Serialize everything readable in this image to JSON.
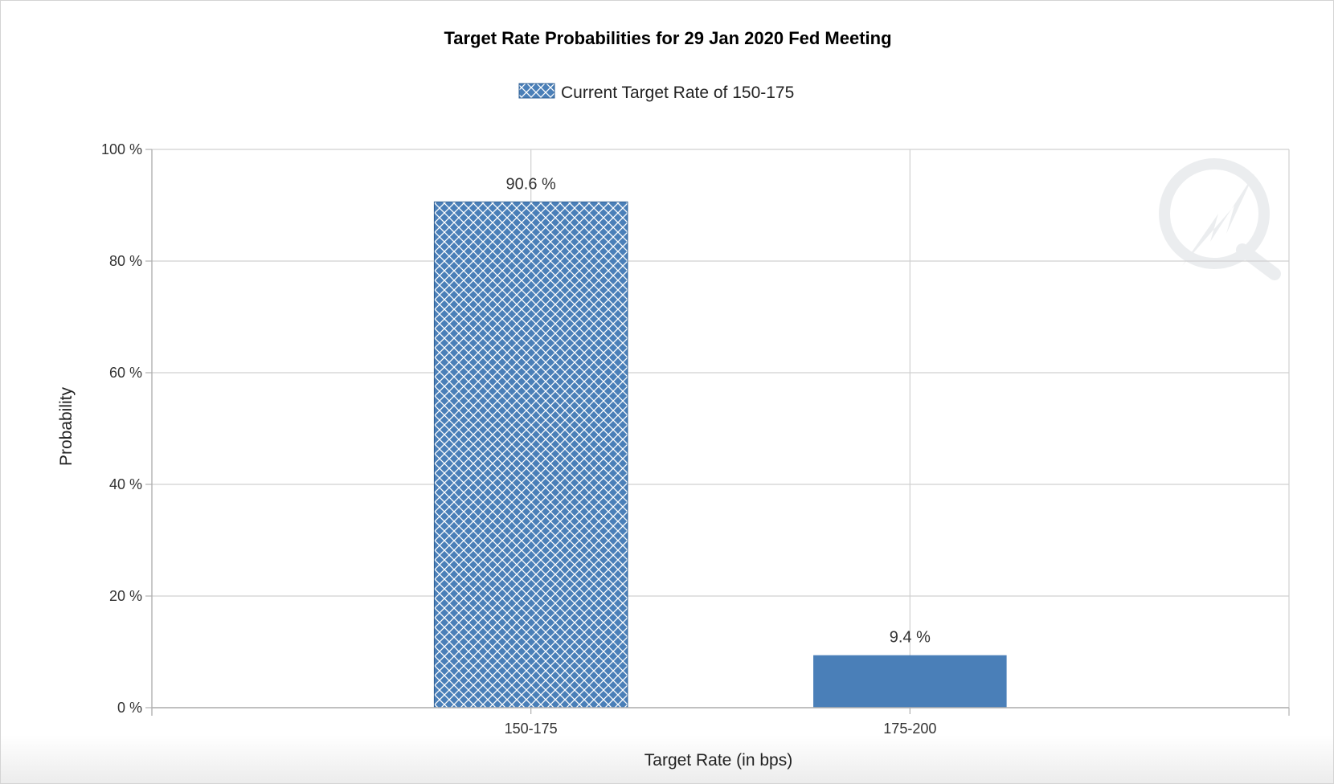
{
  "chart_data": {
    "type": "bar",
    "title": "Target Rate Probabilities for 29 Jan 2020 Fed Meeting",
    "legend": {
      "label": "Current Target Rate of 150-175",
      "placement": "top-center"
    },
    "xlabel": "Target Rate (in bps)",
    "ylabel": "Probability",
    "categories": [
      "150-175",
      "175-200"
    ],
    "values": [
      90.6,
      9.4
    ],
    "data_labels": [
      "90.6 %",
      "9.4 %"
    ],
    "current_category": "150-175",
    "ylim": [
      0,
      100
    ],
    "yticks": [
      0,
      20,
      40,
      60,
      80,
      100
    ],
    "ytick_labels": [
      "0 %",
      "20 %",
      "40 %",
      "60 %",
      "80 %",
      "100 %"
    ],
    "grid": true,
    "colors": {
      "bar": "#4a7fb8",
      "hatch_line": "#ffffff",
      "grid": "#d0d0d0",
      "axis": "#b0b0b0"
    }
  }
}
